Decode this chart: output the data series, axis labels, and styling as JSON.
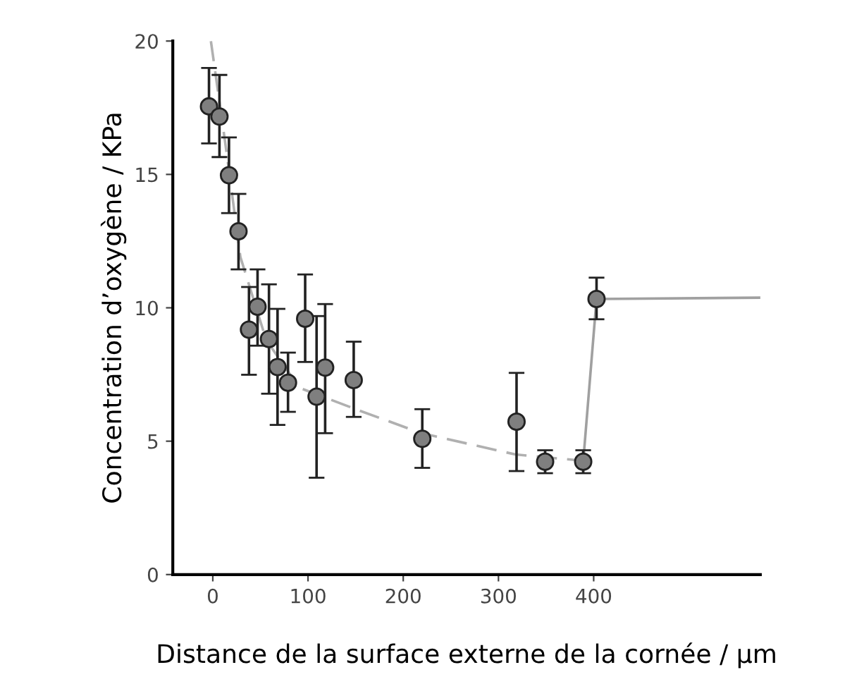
{
  "chart_data": {
    "type": "scatter",
    "xlabel": "Distance de la surface externe de la cornée / µm",
    "ylabel": "Concentration d’oxygène / KPa",
    "xlim": [
      -42,
      575
    ],
    "ylim": [
      0,
      20
    ],
    "xticks": [
      0,
      100,
      200,
      300,
      400
    ],
    "yticks": [
      0,
      5,
      10,
      15,
      20
    ],
    "grid": false,
    "legend": false,
    "marker": "circle",
    "series": [
      {
        "type": "line",
        "color": "#b0b0b0",
        "line_style": "dashed",
        "marker": "none",
        "x": [
          -2,
          13,
          29,
          56,
          91,
          150,
          219,
          318,
          388
        ],
        "values": [
          20,
          16.2,
          11.9,
          8.8,
          7.0,
          6.2,
          5.3,
          4.5,
          4.27
        ]
      },
      {
        "type": "line",
        "color": "#a0a0a0",
        "line_style": "solid",
        "marker": "none",
        "x": [
          389,
          403,
          575
        ],
        "values": [
          4.23,
          10.33,
          10.38
        ]
      },
      {
        "color": "#7f7f7f",
        "x": [
          -4,
          7,
          17,
          27,
          38,
          47,
          59,
          68,
          79,
          97,
          109,
          118,
          148,
          220,
          319,
          349,
          389,
          403
        ],
        "values": [
          17.55,
          17.17,
          14.97,
          12.87,
          9.18,
          10.04,
          8.83,
          7.78,
          7.19,
          9.59,
          6.67,
          7.76,
          7.29,
          5.09,
          5.73,
          4.23,
          4.23,
          10.33
        ],
        "errors": [
          [
            16.16,
            18.99
          ],
          [
            15.65,
            18.73
          ],
          [
            13.55,
            16.39
          ],
          [
            11.44,
            14.27
          ],
          [
            7.49,
            10.78
          ],
          [
            8.58,
            11.44
          ],
          [
            6.78,
            10.88
          ],
          [
            5.61,
            9.96
          ],
          [
            6.1,
            8.32
          ],
          [
            7.97,
            11.25
          ],
          [
            3.63,
            9.69
          ],
          [
            5.3,
            10.14
          ],
          [
            5.91,
            8.73
          ],
          [
            4.0,
            6.2
          ],
          [
            3.88,
            7.56
          ],
          [
            3.8,
            4.66
          ],
          [
            3.8,
            4.66
          ],
          [
            9.57,
            11.13
          ]
        ]
      }
    ]
  }
}
